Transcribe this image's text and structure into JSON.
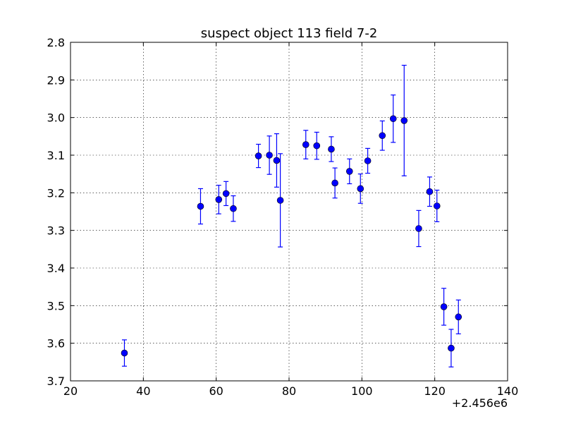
{
  "chart_data": {
    "type": "scatter",
    "title": "suspect object 113 field 7-2",
    "xlabel": "",
    "ylabel": "",
    "x_offset_label": "+2.456e6",
    "xlim": [
      20,
      140
    ],
    "ylim": [
      3.7,
      2.8
    ],
    "y_inverted": true,
    "grid": true,
    "x_ticks": [
      "20",
      "40",
      "60",
      "80",
      "100",
      "120",
      "140"
    ],
    "y_ticks": [
      "2.8",
      "2.9",
      "3.0",
      "3.1",
      "3.2",
      "3.3",
      "3.4",
      "3.5",
      "3.6",
      "3.7"
    ],
    "marker_color": "#0000ff",
    "series": [
      {
        "points": [
          {
            "x": 2456034.8,
            "y": 3.626,
            "err": 0.035
          },
          {
            "x": 2456055.7,
            "y": 3.236,
            "err": 0.047
          },
          {
            "x": 2456060.7,
            "y": 3.218,
            "err": 0.038
          },
          {
            "x": 2456062.7,
            "y": 3.202,
            "err": 0.032
          },
          {
            "x": 2456064.7,
            "y": 3.242,
            "err": 0.034
          },
          {
            "x": 2456071.6,
            "y": 3.102,
            "err": 0.031
          },
          {
            "x": 2456074.6,
            "y": 3.1,
            "err": 0.051
          },
          {
            "x": 2456076.6,
            "y": 3.114,
            "err": 0.071
          },
          {
            "x": 2456077.6,
            "y": 3.22,
            "err": 0.124
          },
          {
            "x": 2456084.6,
            "y": 3.072,
            "err": 0.038
          },
          {
            "x": 2456087.6,
            "y": 3.075,
            "err": 0.036
          },
          {
            "x": 2456091.6,
            "y": 3.084,
            "err": 0.033
          },
          {
            "x": 2456092.6,
            "y": 3.174,
            "err": 0.04
          },
          {
            "x": 2456096.6,
            "y": 3.143,
            "err": 0.033
          },
          {
            "x": 2456099.6,
            "y": 3.189,
            "err": 0.039
          },
          {
            "x": 2456101.6,
            "y": 3.115,
            "err": 0.033
          },
          {
            "x": 2456105.6,
            "y": 3.048,
            "err": 0.039
          },
          {
            "x": 2456108.6,
            "y": 3.003,
            "err": 0.063
          },
          {
            "x": 2456111.6,
            "y": 3.008,
            "err": 0.147
          },
          {
            "x": 2456115.6,
            "y": 3.295,
            "err": 0.048
          },
          {
            "x": 2456118.6,
            "y": 3.197,
            "err": 0.039
          },
          {
            "x": 2456120.6,
            "y": 3.235,
            "err": 0.042
          },
          {
            "x": 2456122.5,
            "y": 3.503,
            "err": 0.049
          },
          {
            "x": 2456124.5,
            "y": 3.613,
            "err": 0.05
          },
          {
            "x": 2456126.5,
            "y": 3.53,
            "err": 0.045
          }
        ]
      }
    ]
  }
}
